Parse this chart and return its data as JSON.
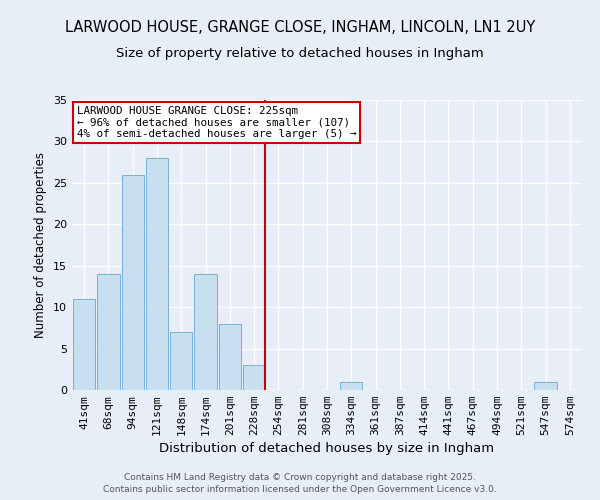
{
  "title": "LARWOOD HOUSE, GRANGE CLOSE, INGHAM, LINCOLN, LN1 2UY",
  "subtitle": "Size of property relative to detached houses in Ingham",
  "xlabel": "Distribution of detached houses by size in Ingham",
  "ylabel": "Number of detached properties",
  "bin_labels": [
    "41sqm",
    "68sqm",
    "94sqm",
    "121sqm",
    "148sqm",
    "174sqm",
    "201sqm",
    "228sqm",
    "254sqm",
    "281sqm",
    "308sqm",
    "334sqm",
    "361sqm",
    "387sqm",
    "414sqm",
    "441sqm",
    "467sqm",
    "494sqm",
    "521sqm",
    "547sqm",
    "574sqm"
  ],
  "bar_values": [
    11,
    14,
    26,
    28,
    7,
    14,
    8,
    3,
    0,
    0,
    0,
    1,
    0,
    0,
    0,
    0,
    0,
    0,
    0,
    1,
    0
  ],
  "bar_color": "#c8dff0",
  "bar_edgecolor": "#7ab0d4",
  "vline_color": "#cc0000",
  "annotation_text": "LARWOOD HOUSE GRANGE CLOSE: 225sqm\n← 96% of detached houses are smaller (107)\n4% of semi-detached houses are larger (5) →",
  "annotation_box_facecolor": "#ffffff",
  "annotation_box_edgecolor": "#cc0000",
  "ylim": [
    0,
    35
  ],
  "yticks": [
    0,
    5,
    10,
    15,
    20,
    25,
    30,
    35
  ],
  "title_fontsize": 10.5,
  "subtitle_fontsize": 9.5,
  "xlabel_fontsize": 9.5,
  "ylabel_fontsize": 8.5,
  "tick_fontsize": 8,
  "annot_fontsize": 7.8,
  "footnote1": "Contains HM Land Registry data © Crown copyright and database right 2025.",
  "footnote2": "Contains public sector information licensed under the Open Government Licence v3.0.",
  "footnote_fontsize": 6.5,
  "background_color": "#e8eef8",
  "grid_color": "#ffffff"
}
